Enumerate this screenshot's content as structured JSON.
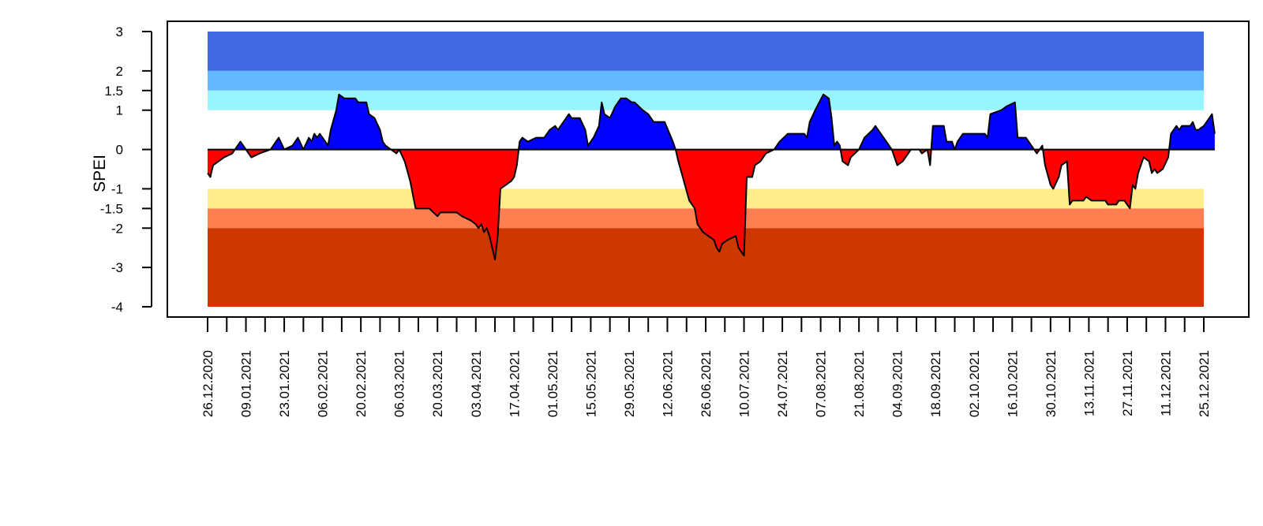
{
  "chart_data": {
    "type": "area",
    "title": "",
    "xlabel": "",
    "ylabel": "SPEI",
    "ylim": [
      -4,
      3
    ],
    "yticks": [
      3,
      2,
      1.5,
      1,
      0,
      -1,
      -1.5,
      -2,
      -3,
      -4
    ],
    "ytick_labels": [
      "3",
      "2",
      "1.5",
      "1",
      "0",
      "-1",
      "-1.5",
      "-2",
      "-3",
      "-4"
    ],
    "x_range": [
      "26.12.2020",
      "25.12.2021"
    ],
    "x_label_step_days": 14,
    "x_minor_step_days": 7,
    "x_tick_labels": [
      "26.12.2020",
      "09.01.2021",
      "23.01.2021",
      "06.02.2021",
      "20.02.2021",
      "06.03.2021",
      "20.03.2021",
      "03.04.2021",
      "17.04.2021",
      "01.05.2021",
      "15.05.2021",
      "29.05.2021",
      "12.06.2021",
      "26.06.2021",
      "10.07.2021",
      "24.07.2021",
      "07.08.2021",
      "21.08.2021",
      "04.09.2021",
      "18.09.2021",
      "02.10.2021",
      "16.10.2021",
      "30.10.2021",
      "13.11.2021",
      "27.11.2021",
      "11.12.2021",
      "25.12.2021"
    ],
    "grid": false,
    "legend": false,
    "bands": [
      {
        "from": 2,
        "to": 3,
        "color": "#4169E1"
      },
      {
        "from": 1.5,
        "to": 2,
        "color": "#63B8FF"
      },
      {
        "from": 1,
        "to": 1.5,
        "color": "#98F5FF"
      },
      {
        "from": -1.5,
        "to": -1,
        "color": "#FFEC8B"
      },
      {
        "from": -2,
        "to": -1.5,
        "color": "#FF7F50"
      },
      {
        "from": -4,
        "to": -2,
        "color": "#CD3700"
      }
    ],
    "fill_colors": {
      "positive": "#0000FF",
      "negative": "#FF0000"
    },
    "line_color": "#000000",
    "series": [
      {
        "points": [
          [
            "26.12.2020",
            -0.6
          ],
          [
            "27.12.2020",
            -0.7
          ],
          [
            "28.12.2020",
            -0.4
          ],
          [
            "01.01.2021",
            -0.2
          ],
          [
            "04.01.2021",
            -0.1
          ],
          [
            "07.01.2021",
            0.2
          ],
          [
            "09.01.2021",
            0.0
          ],
          [
            "11.01.2021",
            -0.2
          ],
          [
            "14.01.2021",
            -0.1
          ],
          [
            "18.01.2021",
            0.0
          ],
          [
            "21.01.2021",
            0.3
          ],
          [
            "23.01.2021",
            0.0
          ],
          [
            "26.01.2021",
            0.1
          ],
          [
            "28.01.2021",
            0.3
          ],
          [
            "30.01.2021",
            0.0
          ],
          [
            "01.02.2021",
            0.3
          ],
          [
            "02.02.2021",
            0.2
          ],
          [
            "03.02.2021",
            0.4
          ],
          [
            "04.02.2021",
            0.3
          ],
          [
            "05.02.2021",
            0.4
          ],
          [
            "06.02.2021",
            0.3
          ],
          [
            "08.02.2021",
            0.1
          ],
          [
            "09.02.2021",
            0.5
          ],
          [
            "11.02.2021",
            1.0
          ],
          [
            "12.02.2021",
            1.4
          ],
          [
            "14.02.2021",
            1.3
          ],
          [
            "18.02.2021",
            1.3
          ],
          [
            "19.02.2021",
            1.2
          ],
          [
            "22.02.2021",
            1.2
          ],
          [
            "23.02.2021",
            0.9
          ],
          [
            "25.02.2021",
            0.8
          ],
          [
            "27.02.2021",
            0.5
          ],
          [
            "28.02.2021",
            0.2
          ],
          [
            "01.03.2021",
            0.1
          ],
          [
            "03.03.2021",
            0.0
          ],
          [
            "05.03.2021",
            -0.1
          ],
          [
            "06.03.2021",
            0.0
          ],
          [
            "08.03.2021",
            -0.3
          ],
          [
            "10.03.2021",
            -0.8
          ],
          [
            "12.03.2021",
            -1.5
          ],
          [
            "17.03.2021",
            -1.5
          ],
          [
            "20.03.2021",
            -1.7
          ],
          [
            "21.03.2021",
            -1.6
          ],
          [
            "27.03.2021",
            -1.6
          ],
          [
            "29.03.2021",
            -1.7
          ],
          [
            "01.04.2021",
            -1.8
          ],
          [
            "03.04.2021",
            -1.9
          ],
          [
            "04.04.2021",
            -2.0
          ],
          [
            "05.04.2021",
            -1.9
          ],
          [
            "06.04.2021",
            -2.1
          ],
          [
            "07.04.2021",
            -2.0
          ],
          [
            "08.04.2021",
            -2.2
          ],
          [
            "10.04.2021",
            -2.8
          ],
          [
            "11.04.2021",
            -2.2
          ],
          [
            "12.04.2021",
            -1.0
          ],
          [
            "14.04.2021",
            -0.9
          ],
          [
            "16.04.2021",
            -0.8
          ],
          [
            "17.04.2021",
            -0.7
          ],
          [
            "18.04.2021",
            -0.4
          ],
          [
            "19.04.2021",
            0.2
          ],
          [
            "20.04.2021",
            0.3
          ],
          [
            "22.04.2021",
            0.2
          ],
          [
            "25.04.2021",
            0.3
          ],
          [
            "28.04.2021",
            0.3
          ],
          [
            "30.04.2021",
            0.5
          ],
          [
            "02.05.2021",
            0.6
          ],
          [
            "03.05.2021",
            0.5
          ],
          [
            "05.05.2021",
            0.7
          ],
          [
            "07.05.2021",
            0.9
          ],
          [
            "08.05.2021",
            0.8
          ],
          [
            "11.05.2021",
            0.8
          ],
          [
            "13.05.2021",
            0.5
          ],
          [
            "14.05.2021",
            0.1
          ],
          [
            "16.05.2021",
            0.3
          ],
          [
            "18.05.2021",
            0.6
          ],
          [
            "19.05.2021",
            1.2
          ],
          [
            "20.05.2021",
            0.9
          ],
          [
            "22.05.2021",
            0.8
          ],
          [
            "24.05.2021",
            1.1
          ],
          [
            "26.05.2021",
            1.3
          ],
          [
            "28.05.2021",
            1.3
          ],
          [
            "30.05.2021",
            1.2
          ],
          [
            "31.05.2021",
            1.2
          ],
          [
            "03.06.2021",
            1.0
          ],
          [
            "05.06.2021",
            0.9
          ],
          [
            "07.06.2021",
            0.7
          ],
          [
            "11.06.2021",
            0.7
          ],
          [
            "14.06.2021",
            0.2
          ],
          [
            "15.06.2021",
            0.0
          ],
          [
            "16.06.2021",
            -0.3
          ],
          [
            "18.06.2021",
            -0.8
          ],
          [
            "20.06.2021",
            -1.3
          ],
          [
            "22.06.2021",
            -1.5
          ],
          [
            "23.06.2021",
            -1.9
          ],
          [
            "25.06.2021",
            -2.1
          ],
          [
            "27.06.2021",
            -2.2
          ],
          [
            "29.06.2021",
            -2.3
          ],
          [
            "30.06.2021",
            -2.5
          ],
          [
            "01.07.2021",
            -2.6
          ],
          [
            "02.07.2021",
            -2.4
          ],
          [
            "04.07.2021",
            -2.3
          ],
          [
            "07.07.2021",
            -2.2
          ],
          [
            "08.07.2021",
            -2.5
          ],
          [
            "10.07.2021",
            -2.7
          ],
          [
            "11.07.2021",
            -0.7
          ],
          [
            "13.07.2021",
            -0.7
          ],
          [
            "14.07.2021",
            -0.4
          ],
          [
            "16.07.2021",
            -0.3
          ],
          [
            "18.07.2021",
            -0.1
          ],
          [
            "21.07.2021",
            0.0
          ],
          [
            "23.07.2021",
            0.2
          ],
          [
            "26.07.2021",
            0.4
          ],
          [
            "01.08.2021",
            0.4
          ],
          [
            "02.08.2021",
            0.3
          ],
          [
            "03.08.2021",
            0.7
          ],
          [
            "05.08.2021",
            1.0
          ],
          [
            "08.08.2021",
            1.4
          ],
          [
            "10.08.2021",
            1.3
          ],
          [
            "11.08.2021",
            0.8
          ],
          [
            "12.08.2021",
            0.1
          ],
          [
            "13.08.2021",
            0.2
          ],
          [
            "14.08.2021",
            0.1
          ],
          [
            "15.08.2021",
            -0.3
          ],
          [
            "17.08.2021",
            -0.4
          ],
          [
            "18.08.2021",
            -0.2
          ],
          [
            "21.08.2021",
            0.0
          ],
          [
            "23.08.2021",
            0.3
          ],
          [
            "26.08.2021",
            0.5
          ],
          [
            "27.08.2021",
            0.6
          ],
          [
            "30.08.2021",
            0.3
          ],
          [
            "02.09.2021",
            0.0
          ],
          [
            "04.09.2021",
            -0.4
          ],
          [
            "06.09.2021",
            -0.3
          ],
          [
            "09.09.2021",
            0.0
          ],
          [
            "12.09.2021",
            0.0
          ],
          [
            "13.09.2021",
            -0.1
          ],
          [
            "15.09.2021",
            0.0
          ],
          [
            "16.09.2021",
            -0.4
          ],
          [
            "17.09.2021",
            0.6
          ],
          [
            "21.09.2021",
            0.6
          ],
          [
            "22.09.2021",
            0.2
          ],
          [
            "24.09.2021",
            0.2
          ],
          [
            "25.09.2021",
            0.0
          ],
          [
            "26.09.2021",
            0.2
          ],
          [
            "28.09.2021",
            0.4
          ],
          [
            "06.10.2021",
            0.4
          ],
          [
            "07.10.2021",
            0.3
          ],
          [
            "08.10.2021",
            0.9
          ],
          [
            "12.10.2021",
            1.0
          ],
          [
            "14.10.2021",
            1.1
          ],
          [
            "17.10.2021",
            1.2
          ],
          [
            "18.10.2021",
            0.3
          ],
          [
            "21.10.2021",
            0.3
          ],
          [
            "23.10.2021",
            0.1
          ],
          [
            "25.10.2021",
            -0.1
          ],
          [
            "27.10.2021",
            0.1
          ],
          [
            "28.10.2021",
            -0.4
          ],
          [
            "30.10.2021",
            -0.9
          ],
          [
            "31.10.2021",
            -1.0
          ],
          [
            "02.11.2021",
            -0.7
          ],
          [
            "03.11.2021",
            -0.4
          ],
          [
            "05.11.2021",
            -0.3
          ],
          [
            "06.11.2021",
            -1.4
          ],
          [
            "07.11.2021",
            -1.3
          ],
          [
            "11.11.2021",
            -1.3
          ],
          [
            "12.11.2021",
            -1.2
          ],
          [
            "14.11.2021",
            -1.3
          ],
          [
            "19.11.2021",
            -1.3
          ],
          [
            "20.11.2021",
            -1.4
          ],
          [
            "23.11.2021",
            -1.4
          ],
          [
            "24.11.2021",
            -1.3
          ],
          [
            "26.11.2021",
            -1.3
          ],
          [
            "28.11.2021",
            -1.5
          ],
          [
            "29.11.2021",
            -0.9
          ],
          [
            "30.11.2021",
            -1.0
          ],
          [
            "01.12.2021",
            -0.6
          ],
          [
            "03.12.2021",
            -0.2
          ],
          [
            "05.12.2021",
            -0.3
          ],
          [
            "06.12.2021",
            -0.6
          ],
          [
            "07.12.2021",
            -0.5
          ],
          [
            "08.12.2021",
            -0.6
          ],
          [
            "10.12.2021",
            -0.5
          ],
          [
            "12.12.2021",
            -0.2
          ],
          [
            "13.12.2021",
            0.4
          ],
          [
            "15.12.2021",
            0.6
          ],
          [
            "16.12.2021",
            0.5
          ],
          [
            "17.12.2021",
            0.6
          ],
          [
            "20.12.2021",
            0.6
          ],
          [
            "21.12.2021",
            0.7
          ],
          [
            "22.12.2021",
            0.5
          ],
          [
            "23.12.2021",
            0.5
          ],
          [
            "25.12.2021",
            0.6
          ],
          [
            "26.12.2021",
            0.7
          ],
          [
            "27.12.2021",
            0.8
          ],
          [
            "28.12.2021",
            0.9
          ],
          [
            "29.12.2021",
            0.4
          ]
        ]
      }
    ]
  }
}
